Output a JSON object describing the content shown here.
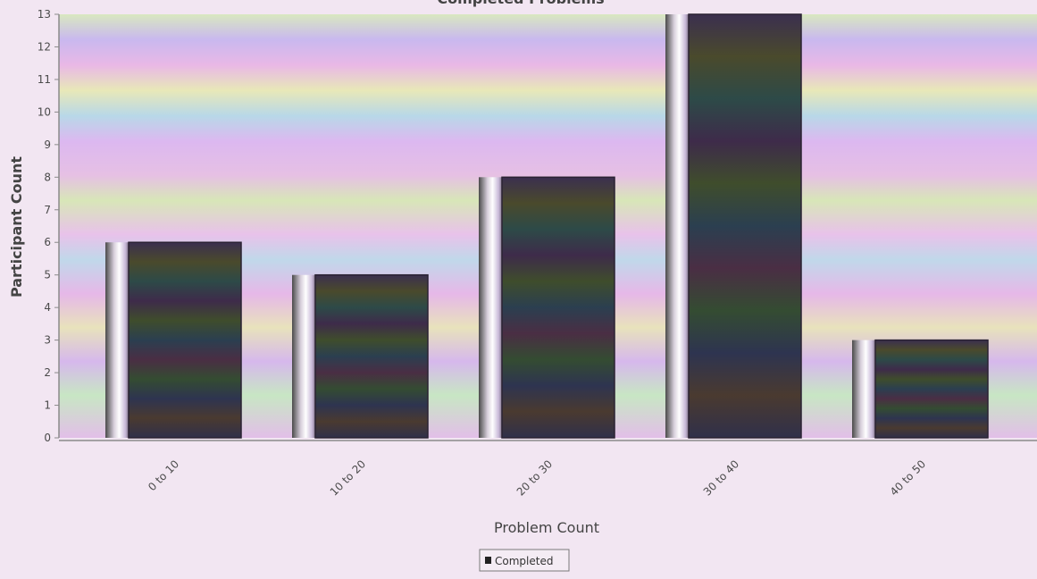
{
  "chart_data": {
    "type": "bar",
    "title": "Completed Problems",
    "xlabel": "Problem Count",
    "ylabel": "Participant Count",
    "categories": [
      "0 to 10",
      "10 to 20",
      "20 to 30",
      "30 to 40",
      "40 to 50"
    ],
    "series": [
      {
        "name": "Completed",
        "values": [
          6,
          5,
          8,
          13,
          3
        ]
      }
    ],
    "ylim": [
      0,
      13
    ],
    "yticks": [
      0,
      1,
      2,
      3,
      4,
      5,
      6,
      7,
      8,
      9,
      10,
      11,
      12,
      13
    ],
    "grid": false,
    "legend": "bottom-center"
  },
  "colors": {
    "background": "#f2e6f2",
    "axis": "#8a8a8a",
    "bar_dark": "#3a2e4a",
    "bar_mid": "#2f4a3c"
  }
}
